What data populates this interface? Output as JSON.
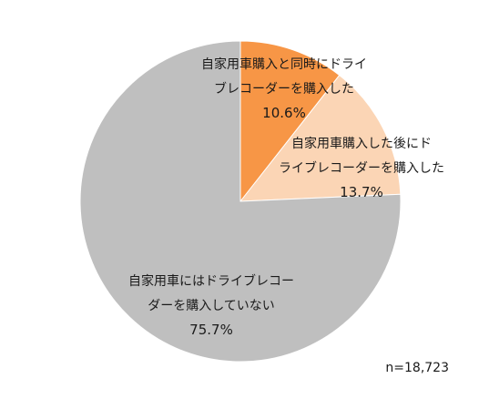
{
  "chart_data": {
    "type": "pie",
    "slices": [
      {
        "label_lines": [
          "自家用車購入と同時にドライ",
          "ブレコーダーを購入した"
        ],
        "value": 10.6,
        "value_label": "10.6%",
        "color": "#F79646"
      },
      {
        "label_lines": [
          "自家用車購入した後にド",
          "ライブレコーダーを購入した"
        ],
        "value": 13.7,
        "value_label": "13.7%",
        "color": "#FBD5B5"
      },
      {
        "label_lines": [
          "自家用車にはドライブレコー",
          "ダーを購入していない"
        ],
        "value": 75.7,
        "value_label": "75.7%",
        "color": "#BFBFBF"
      }
    ],
    "note": "n=18,723"
  }
}
